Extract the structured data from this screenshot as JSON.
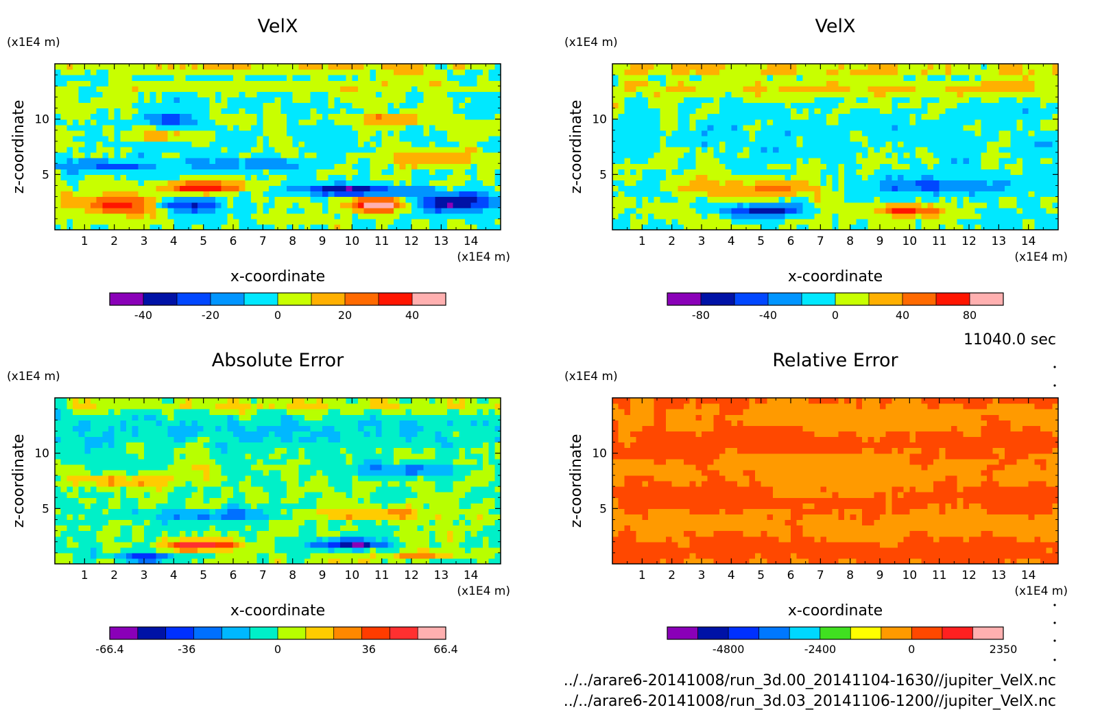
{
  "time_label": "11040.0 sec",
  "files": [
    "../../arare6-20141008/run_3d.00_20141104-1630//jupiter_VelX.nc",
    "../../arare6-20141008/run_3d.03_20141106-1200//jupiter_VelX.nc"
  ],
  "colormaps": {
    "velx": [
      "#8a00b8",
      "#0012a6",
      "#0047ff",
      "#0095ff",
      "#00e8ff",
      "#c8ff00",
      "#ffb000",
      "#ff6a00",
      "#ff1500",
      "#ffb0b0"
    ],
    "abs": [
      "#8a00b8",
      "#0012a6",
      "#0030ff",
      "#0070ff",
      "#00b8ff",
      "#00f0c8",
      "#b8ff00",
      "#ffcc00",
      "#ff8800",
      "#ff3c00",
      "#ff3030",
      "#ffb0b0"
    ],
    "rel": [
      "#8a00b8",
      "#0012a6",
      "#0030ff",
      "#0078ff",
      "#00d8ff",
      "#40e020",
      "#ffff00",
      "#ff9a00",
      "#ff4800",
      "#ff2020",
      "#ffb0b0"
    ]
  },
  "chart_data": [
    {
      "type": "heatmap",
      "title": "VelX",
      "xlabel": "x-coordinate",
      "ylabel": "z-coordinate",
      "x_unit": "(x1E4 m)",
      "y_unit": "(x1E4 m)",
      "xlim": [
        0,
        15
      ],
      "ylim": [
        0,
        15
      ],
      "x_ticks": [
        1,
        2,
        3,
        4,
        5,
        6,
        7,
        8,
        9,
        10,
        11,
        12,
        13,
        14
      ],
      "y_ticks": [
        5,
        10
      ],
      "colormap": "velx",
      "colorbar_ticks": [
        "-40",
        "-20",
        "0",
        "20",
        "40"
      ],
      "colorbar_tick_fractions": [
        0.1,
        0.3,
        0.5,
        0.7,
        0.9
      ],
      "features": [
        {
          "x": 2.5,
          "z": 2.3,
          "sx": 1.6,
          "sz": 0.9,
          "amp": 0.8
        },
        {
          "x": 4.3,
          "z": 2.2,
          "sx": 1.2,
          "sz": 0.6,
          "amp": -0.85
        },
        {
          "x": 5.0,
          "z": 3.9,
          "sx": 1.8,
          "sz": 0.5,
          "amp": 0.7
        },
        {
          "x": 10.9,
          "z": 2.3,
          "sx": 1.1,
          "sz": 0.6,
          "amp": 0.95
        },
        {
          "x": 10.0,
          "z": 3.6,
          "sx": 2.3,
          "sz": 0.5,
          "amp": -0.8
        },
        {
          "x": 13.5,
          "z": 2.5,
          "sx": 1.5,
          "sz": 0.8,
          "amp": -0.75
        },
        {
          "x": 1.8,
          "z": 5.8,
          "sx": 1.5,
          "sz": 0.5,
          "amp": -0.5
        },
        {
          "x": 6.5,
          "z": 6.0,
          "sx": 2.0,
          "sz": 0.5,
          "amp": -0.45
        },
        {
          "x": 12.5,
          "z": 6.5,
          "sx": 2.0,
          "sz": 0.8,
          "amp": 0.4
        },
        {
          "x": 3.5,
          "z": 8.5,
          "sx": 1.2,
          "sz": 0.4,
          "amp": 0.4
        },
        {
          "x": 4.0,
          "z": 10.0,
          "sx": 1.0,
          "sz": 0.4,
          "amp": -0.45
        },
        {
          "x": 11.5,
          "z": 10.0,
          "sx": 1.5,
          "sz": 0.5,
          "amp": 0.4
        },
        {
          "x": 7.5,
          "z": 13.0,
          "sx": 9.0,
          "sz": 0.2,
          "amp": 0.55
        },
        {
          "x": 7.5,
          "z": 14.6,
          "sx": 9.0,
          "sz": 0.4,
          "amp": 0.25
        }
      ]
    },
    {
      "type": "heatmap",
      "title": "VelX",
      "xlabel": "x-coordinate",
      "ylabel": "z-coordinate",
      "x_unit": "(x1E4 m)",
      "y_unit": "(x1E4 m)",
      "xlim": [
        0,
        15
      ],
      "ylim": [
        0,
        15
      ],
      "x_ticks": [
        1,
        2,
        3,
        4,
        5,
        6,
        7,
        8,
        9,
        10,
        11,
        12,
        13,
        14
      ],
      "y_ticks": [
        5,
        10
      ],
      "colormap": "velx",
      "colorbar_ticks": [
        "-80",
        "-40",
        "0",
        "40",
        "80"
      ],
      "colorbar_tick_fractions": [
        0.1,
        0.3,
        0.5,
        0.7,
        0.9
      ],
      "features": [
        {
          "x": 5.0,
          "z": 1.8,
          "sx": 1.3,
          "sz": 0.6,
          "amp": -0.75
        },
        {
          "x": 10.0,
          "z": 1.8,
          "sx": 1.2,
          "sz": 0.5,
          "amp": 0.75
        },
        {
          "x": 5.0,
          "z": 3.8,
          "sx": 2.5,
          "sz": 0.8,
          "amp": 0.45
        },
        {
          "x": 11.0,
          "z": 4.0,
          "sx": 2.5,
          "sz": 0.8,
          "amp": -0.45
        },
        {
          "x": 7.5,
          "z": 8.5,
          "sx": 8.0,
          "sz": 2.0,
          "amp": -0.12
        },
        {
          "x": 7.5,
          "z": 12.8,
          "sx": 9.0,
          "sz": 0.6,
          "amp": 0.3
        },
        {
          "x": 7.5,
          "z": 14.5,
          "sx": 9.0,
          "sz": 0.5,
          "amp": 0.3
        }
      ]
    },
    {
      "type": "heatmap",
      "title": "Absolute Error",
      "xlabel": "x-coordinate",
      "ylabel": "z-coordinate",
      "x_unit": "(x1E4 m)",
      "y_unit": "(x1E4 m)",
      "xlim": [
        0,
        15
      ],
      "ylim": [
        0,
        15
      ],
      "x_ticks": [
        1,
        2,
        3,
        4,
        5,
        6,
        7,
        8,
        9,
        10,
        11,
        12,
        13,
        14
      ],
      "y_ticks": [
        5,
        10
      ],
      "colormap": "abs",
      "colorbar_ticks": [
        "-66.4",
        "-36",
        "0",
        "36",
        "66.4"
      ],
      "colorbar_tick_fractions": [
        0.0,
        0.229,
        0.5,
        0.771,
        1.0
      ],
      "features": [
        {
          "x": 5.0,
          "z": 1.7,
          "sx": 1.2,
          "sz": 0.5,
          "amp": 0.85
        },
        {
          "x": 10.0,
          "z": 1.8,
          "sx": 1.2,
          "sz": 0.5,
          "amp": -0.85
        },
        {
          "x": 3.0,
          "z": 0.6,
          "sx": 1.2,
          "sz": 0.4,
          "amp": -0.55
        },
        {
          "x": 12.5,
          "z": 0.8,
          "sx": 1.2,
          "sz": 0.4,
          "amp": 0.5
        },
        {
          "x": 5.5,
          "z": 4.5,
          "sx": 2.5,
          "sz": 0.6,
          "amp": -0.45
        },
        {
          "x": 10.0,
          "z": 4.5,
          "sx": 2.5,
          "sz": 0.6,
          "amp": 0.4
        },
        {
          "x": 2.0,
          "z": 7.5,
          "sx": 2.0,
          "sz": 0.6,
          "amp": 0.35
        },
        {
          "x": 12.0,
          "z": 8.5,
          "sx": 2.0,
          "sz": 0.6,
          "amp": -0.4
        },
        {
          "x": 7.5,
          "z": 12.0,
          "sx": 9.0,
          "sz": 1.5,
          "amp": -0.2
        },
        {
          "x": 7.5,
          "z": 14.3,
          "sx": 9.0,
          "sz": 0.6,
          "amp": 0.2
        }
      ]
    },
    {
      "type": "heatmap",
      "title": "Relative Error",
      "xlabel": "x-coordinate",
      "ylabel": "z-coordinate",
      "x_unit": "(x1E4 m)",
      "y_unit": "(x1E4 m)",
      "xlim": [
        0,
        15
      ],
      "ylim": [
        0,
        15
      ],
      "x_ticks": [
        1,
        2,
        3,
        4,
        5,
        6,
        7,
        8,
        9,
        10,
        11,
        12,
        13,
        14
      ],
      "y_ticks": [
        5,
        10
      ],
      "colormap": "rel",
      "colorbar_ticks": [
        "-4800",
        "-2400",
        "0",
        "2350"
      ],
      "colorbar_tick_fractions": [
        0.182,
        0.455,
        0.727,
        1.0
      ],
      "levels": [
        7,
        8
      ],
      "features": []
    }
  ]
}
